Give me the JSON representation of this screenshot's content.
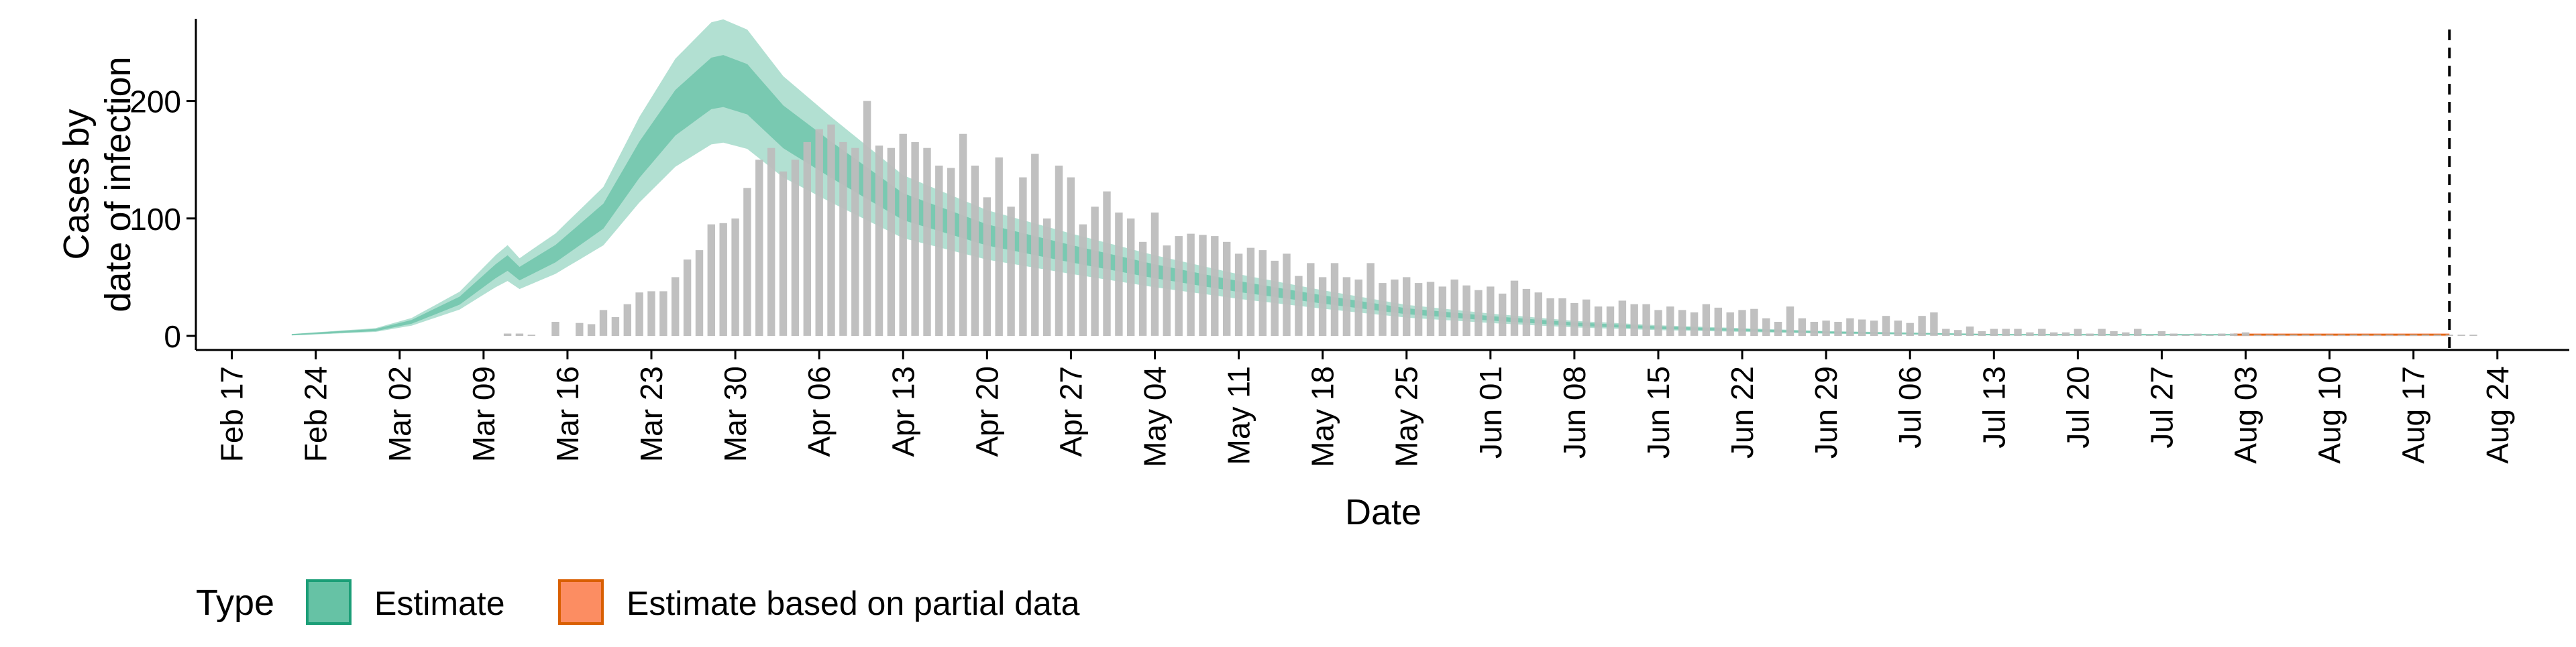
{
  "chart_data": {
    "type": "bar",
    "title": "",
    "xlabel": "Date",
    "ylabel": "Cases by\ndate of infection",
    "x_axis": {
      "type": "date",
      "range": [
        "2020-02-14",
        "2020-08-30"
      ],
      "ticks": [
        "2020-02-17",
        "2020-02-24",
        "2020-03-02",
        "2020-03-09",
        "2020-03-16",
        "2020-03-23",
        "2020-03-30",
        "2020-04-06",
        "2020-04-13",
        "2020-04-20",
        "2020-04-27",
        "2020-05-04",
        "2020-05-11",
        "2020-05-18",
        "2020-05-25",
        "2020-06-01",
        "2020-06-08",
        "2020-06-15",
        "2020-06-22",
        "2020-06-29",
        "2020-07-06",
        "2020-07-13",
        "2020-07-20",
        "2020-07-27",
        "2020-08-03",
        "2020-08-10",
        "2020-08-17",
        "2020-08-24"
      ],
      "tick_labels": [
        "Feb 17",
        "Feb 24",
        "Mar 02",
        "Mar 09",
        "Mar 16",
        "Mar 23",
        "Mar 30",
        "Apr 06",
        "Apr 13",
        "Apr 20",
        "Apr 27",
        "May 04",
        "May 11",
        "May 18",
        "May 25",
        "Jun 01",
        "Jun 08",
        "Jun 15",
        "Jun 22",
        "Jun 29",
        "Jul 06",
        "Jul 13",
        "Jul 20",
        "Jul 27",
        "Aug 03",
        "Aug 10",
        "Aug 17",
        "Aug 24"
      ]
    },
    "y_axis": {
      "range": [
        -12,
        270
      ],
      "ticks": [
        0,
        100,
        200
      ]
    },
    "grid": false,
    "reference_line": {
      "date": "2020-08-20",
      "style": "dashed"
    },
    "bars": {
      "color": "#bdbdbd",
      "start_date": "2020-03-11",
      "values": [
        2,
        2,
        1,
        0,
        12,
        0,
        11,
        10,
        22,
        16,
        27,
        37,
        38,
        38,
        50,
        65,
        73,
        95,
        96,
        100,
        126,
        150,
        160,
        140,
        150,
        165,
        176,
        180,
        165,
        160,
        200,
        162,
        160,
        172,
        165,
        160,
        145,
        143,
        172,
        145,
        118,
        152,
        110,
        135,
        155,
        100,
        145,
        135,
        95,
        110,
        123,
        105,
        100,
        80,
        105,
        77,
        85,
        87,
        86,
        85,
        80,
        70,
        75,
        73,
        64,
        70,
        51,
        62,
        50,
        62,
        50,
        48,
        62,
        45,
        48,
        50,
        45,
        46,
        42,
        48,
        43,
        39,
        42,
        36,
        47,
        40,
        37,
        32,
        32,
        28,
        31,
        25,
        25,
        30,
        27,
        27,
        22,
        25,
        22,
        20,
        27,
        24,
        20,
        22,
        23,
        15,
        12,
        25,
        15,
        12,
        13,
        12,
        15,
        14,
        13,
        17,
        13,
        11,
        17,
        20,
        6,
        5,
        8,
        4,
        6,
        6,
        6,
        3,
        6,
        3,
        3,
        6,
        2,
        6,
        4,
        3,
        6,
        1,
        4,
        2,
        1,
        2,
        1,
        2,
        2,
        3,
        1,
        1,
        1,
        1,
        1,
        1,
        1,
        1,
        1,
        1,
        1,
        1,
        1,
        1,
        1,
        1,
        1,
        1,
        1
      ]
    },
    "series": [
      {
        "name": "Estimate",
        "color": "#66c2a5",
        "border": "#1b9e77",
        "start_date": "2020-02-22",
        "end_date": "2020-08-02",
        "knots": [
          [
            "2020-02-22",
            1
          ],
          [
            "2020-02-29",
            5
          ],
          [
            "2020-03-03",
            12
          ],
          [
            "2020-03-07",
            30
          ],
          [
            "2020-03-10",
            55
          ],
          [
            "2020-03-11",
            62
          ],
          [
            "2020-03-12",
            53
          ],
          [
            "2020-03-15",
            70
          ],
          [
            "2020-03-19",
            102
          ],
          [
            "2020-03-22",
            150
          ],
          [
            "2020-03-25",
            190
          ],
          [
            "2020-03-28",
            215
          ],
          [
            "2020-03-29",
            217
          ],
          [
            "2020-03-31",
            210
          ],
          [
            "2020-04-03",
            178
          ],
          [
            "2020-04-07",
            150
          ],
          [
            "2020-04-13",
            110
          ],
          [
            "2020-04-20",
            86
          ],
          [
            "2020-04-27",
            70
          ],
          [
            "2020-05-04",
            55
          ],
          [
            "2020-05-11",
            42
          ],
          [
            "2020-05-18",
            31
          ],
          [
            "2020-05-25",
            21
          ],
          [
            "2020-06-01",
            15
          ],
          [
            "2020-06-08",
            10
          ],
          [
            "2020-06-15",
            7
          ],
          [
            "2020-06-22",
            5
          ],
          [
            "2020-06-29",
            3
          ],
          [
            "2020-07-06",
            2
          ],
          [
            "2020-07-13",
            1
          ],
          [
            "2020-08-02",
            1
          ]
        ],
        "band_inner_frac": 0.1,
        "band_outer_frac": 0.24
      },
      {
        "name": "Estimate based on partial data",
        "color": "#fc8d62",
        "border": "#d95f02",
        "start_date": "2020-08-02",
        "end_date": "2020-08-20",
        "level": 1
      }
    ],
    "legend": {
      "title": "Type",
      "position": "bottom-left",
      "items": [
        {
          "label": "Estimate",
          "color": "#66c2a5",
          "border": "#1b9e77"
        },
        {
          "label": "Estimate based on partial data",
          "color": "#fc8d62",
          "border": "#d95f02"
        }
      ]
    }
  }
}
